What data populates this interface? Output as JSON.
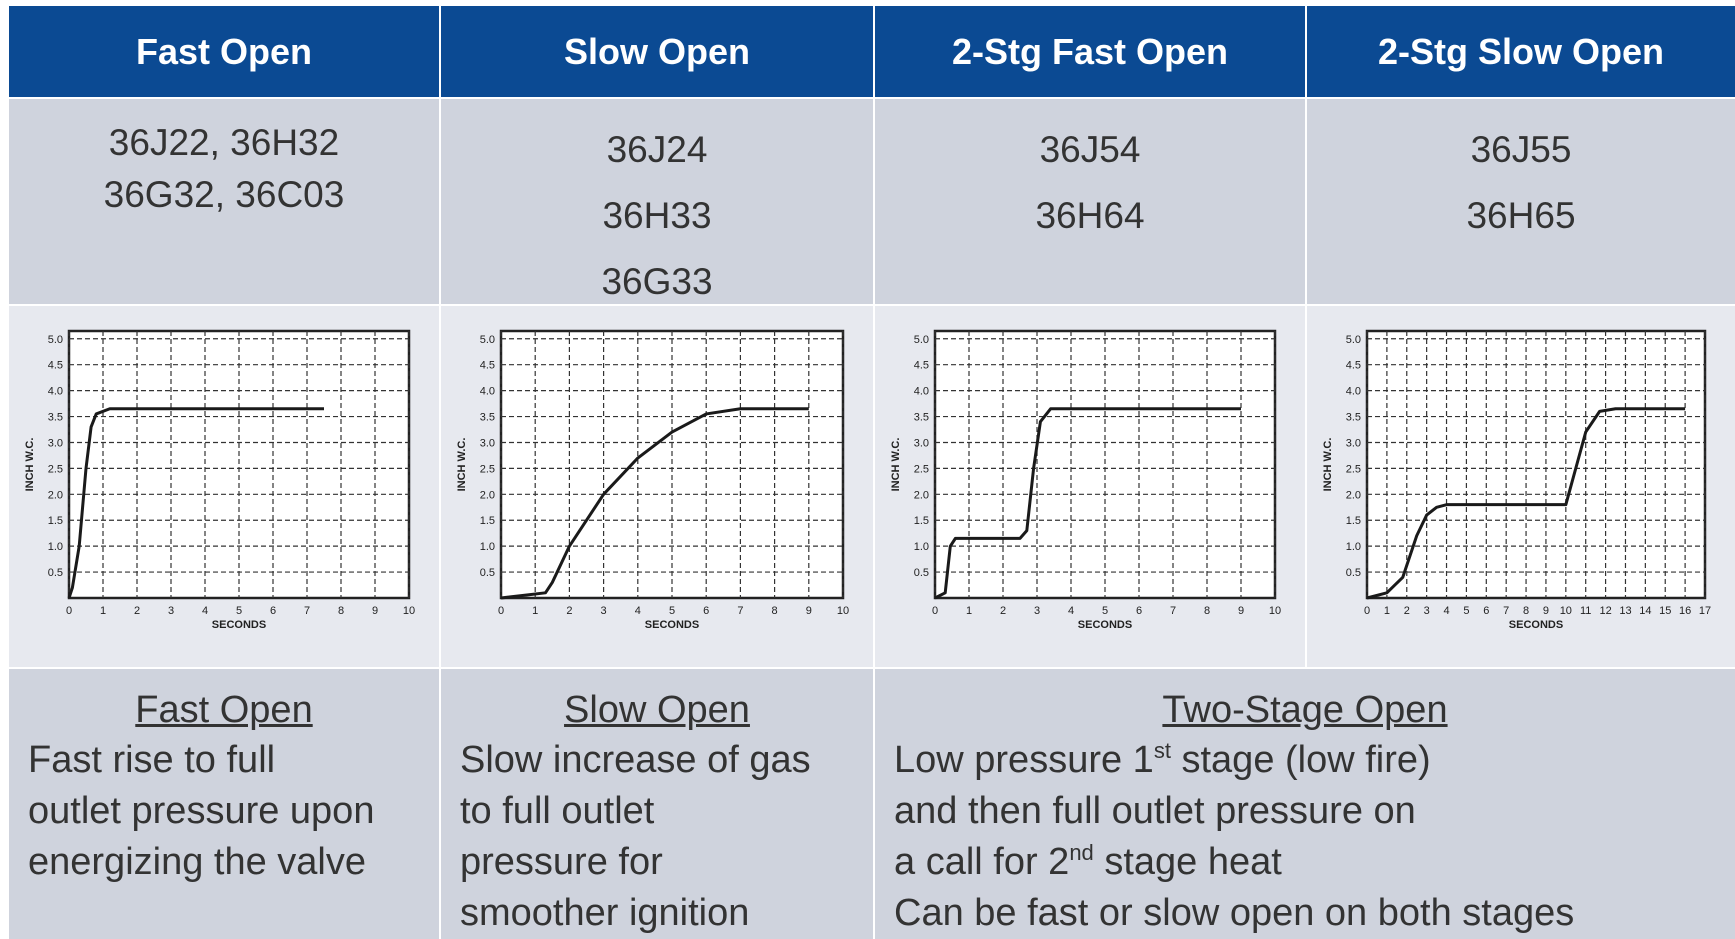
{
  "table": {
    "header": [
      "Fast  Open",
      "Slow Open",
      "2-Stg Fast Open",
      "2-Stg Slow Open"
    ],
    "models": [
      [
        "36J22, 36H32",
        "36G32, 36C03"
      ],
      [
        "36J24",
        "36H33",
        "36G33"
      ],
      [
        "36J54",
        "36H64"
      ],
      [
        "36J55",
        "36H65"
      ]
    ],
    "descriptions": [
      {
        "title": "Fast Open",
        "lines": [
          [
            {
              "text": "Fast rise to full"
            }
          ],
          [
            {
              "text": "outlet pressure upon"
            }
          ],
          [
            {
              "text": "energizing the valve"
            }
          ]
        ]
      },
      {
        "title": "Slow Open",
        "lines": [
          [
            {
              "text": "Slow increase of gas"
            }
          ],
          [
            {
              "text": "to full outlet"
            }
          ],
          [
            {
              "text": "pressure for"
            }
          ],
          [
            {
              "text": "smoother ignition"
            }
          ]
        ]
      },
      {
        "title": "Two-Stage Open",
        "lines": [
          [
            {
              "text": "Low pressure 1"
            },
            {
              "text": "st",
              "sup": true
            },
            {
              "text": " stage (low fire)"
            }
          ],
          [
            {
              "text": "and then full outlet pressure on"
            }
          ],
          [
            {
              "text": "a call for 2"
            },
            {
              "text": "nd",
              "sup": true
            },
            {
              "text": " stage heat"
            }
          ],
          [
            {
              "text": "Can be fast or slow open on both stages"
            }
          ]
        ]
      }
    ]
  },
  "chart_data": [
    {
      "type": "line",
      "ylabel": "INCH W.C.",
      "xlabel": "SECONDS",
      "color": "#1a1a1a",
      "grid": true,
      "x": [
        0,
        0.1,
        0.3,
        0.5,
        0.65,
        0.8,
        1.2,
        7.5
      ],
      "values": [
        0,
        0.2,
        1,
        2.5,
        3.3,
        3.55,
        3.65,
        3.65
      ],
      "xlim": [
        0,
        10
      ],
      "ylim": [
        0,
        5.15
      ],
      "xticks": [
        0,
        1,
        2,
        3,
        4,
        5,
        6,
        7,
        8,
        9,
        10
      ],
      "yticks": [
        0.5,
        {
          "value": 1,
          "label": "1.0"
        },
        1.5,
        {
          "value": 2,
          "label": "2.0"
        },
        2.5,
        {
          "value": 3,
          "label": "3.0"
        },
        3.5,
        {
          "value": 4,
          "label": "4.0"
        },
        4.5,
        {
          "value": 5,
          "label": "5.0"
        }
      ]
    },
    {
      "type": "line",
      "ylabel": "INCH W.C.",
      "xlabel": "SECONDS",
      "color": "#1a1a1a",
      "grid": true,
      "x": [
        0,
        1.3,
        1.5,
        2,
        3,
        4,
        5,
        6,
        7,
        9
      ],
      "values": [
        0,
        0.1,
        0.3,
        1,
        2,
        2.7,
        3.2,
        3.55,
        3.65,
        3.65
      ],
      "xlim": [
        0,
        10
      ],
      "ylim": [
        0,
        5.15
      ],
      "xticks": [
        0,
        1,
        2,
        3,
        4,
        5,
        6,
        7,
        8,
        9,
        10
      ],
      "yticks": [
        0.5,
        {
          "value": 1,
          "label": "1.0"
        },
        1.5,
        {
          "value": 2,
          "label": "2.0"
        },
        2.5,
        {
          "value": 3,
          "label": "3.0"
        },
        3.5,
        {
          "value": 4,
          "label": "4.0"
        },
        4.5,
        {
          "value": 5,
          "label": "5.0"
        }
      ]
    },
    {
      "type": "line",
      "ylabel": "INCH W.C.",
      "xlabel": "SECONDS",
      "color": "#1a1a1a",
      "grid": true,
      "x": [
        0,
        0.3,
        0.45,
        0.6,
        2.5,
        2.7,
        2.9,
        3.1,
        3.4,
        9
      ],
      "values": [
        0,
        0.1,
        1,
        1.15,
        1.15,
        1.3,
        2.5,
        3.4,
        3.65,
        3.65
      ],
      "xlim": [
        0,
        10
      ],
      "ylim": [
        0,
        5.15
      ],
      "xticks": [
        0,
        1,
        2,
        3,
        4,
        5,
        6,
        7,
        8,
        9,
        10
      ],
      "yticks": [
        0.5,
        {
          "value": 1,
          "label": "1.0"
        },
        1.5,
        {
          "value": 2,
          "label": "2.0"
        },
        2.5,
        {
          "value": 3,
          "label": "3.0"
        },
        3.5,
        {
          "value": 4,
          "label": "4.0"
        },
        4.5,
        {
          "value": 5,
          "label": "5.0"
        }
      ]
    },
    {
      "type": "line",
      "ylabel": "INCH W.C.",
      "xlabel": "SECONDS",
      "color": "#1a1a1a",
      "grid": true,
      "x": [
        0,
        1,
        1.8,
        2.5,
        3,
        3.5,
        4,
        10,
        10.5,
        11,
        11.7,
        12.5,
        16
      ],
      "values": [
        0,
        0.1,
        0.4,
        1.2,
        1.6,
        1.75,
        1.8,
        1.8,
        2.5,
        3.2,
        3.6,
        3.65,
        3.65
      ],
      "xlim": [
        0,
        17
      ],
      "ylim": [
        0,
        5.15
      ],
      "xticks": [
        0,
        1,
        2,
        3,
        4,
        5,
        6,
        7,
        8,
        9,
        10,
        11,
        12,
        13,
        14,
        15,
        16,
        17
      ],
      "yticks": [
        0.5,
        {
          "value": 1,
          "label": "1.0"
        },
        1.5,
        {
          "value": 2,
          "label": "2.0"
        },
        2.5,
        {
          "value": 3,
          "label": "3.0"
        },
        3.5,
        {
          "value": 4,
          "label": "4.0"
        },
        4.5,
        {
          "value": 5,
          "label": "5.0"
        }
      ]
    }
  ]
}
